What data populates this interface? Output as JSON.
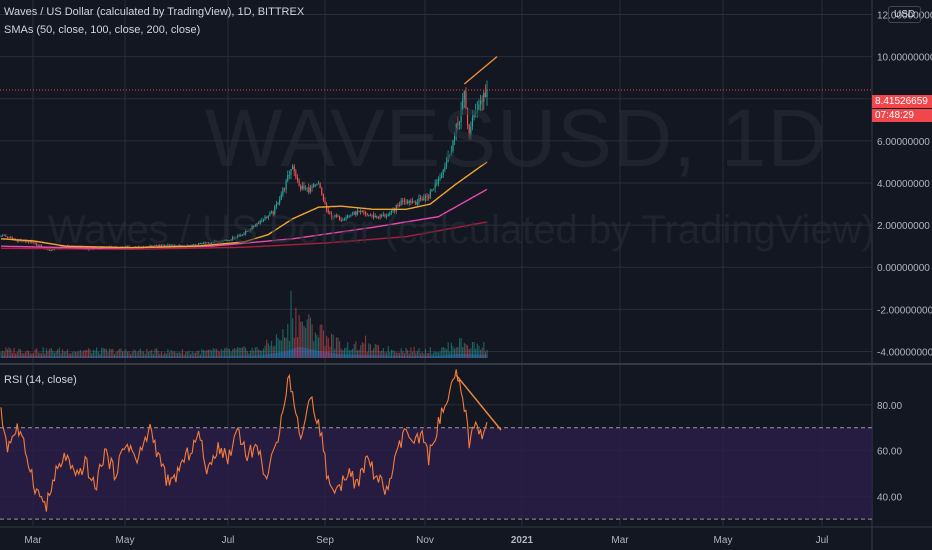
{
  "header": {
    "title": "Waves / US Dollar (calculated by TradingView), 1D, BITTREX",
    "indicators": "SMAs (50, close, 100, close, 200, close)",
    "rsi_label": "RSI (14, close)",
    "currency_button": "USD"
  },
  "watermark": {
    "symbol": "WAVESUSD, 1D",
    "description": "Waves / US Dollar (calculated by TradingView)"
  },
  "price_tag": {
    "value": "8.41526659",
    "countdown": "07:48:29"
  },
  "colors": {
    "background": "#131722",
    "grid": "#2a2e39",
    "up": "#26a69a",
    "down": "#ef5350",
    "sma50": "#f0a533",
    "sma100": "#e84aad",
    "sma200": "#ab1e3d",
    "rsi": "#f57c3a",
    "rsi_band": "#2a1d46",
    "trendline": "#f28b3a",
    "last_price": "#f0474c"
  },
  "chart_data": [
    {
      "type": "candlestick",
      "title": "Waves / US Dollar (calculated by TradingView), 1D, BITTREX",
      "ylim": [
        -4.5,
        12.5
      ],
      "y_ticks": [
        "12.00000000",
        "10.00000000",
        "8.00000000",
        "6.00000000",
        "4.00000000",
        "2.00000000",
        "0.00000000",
        "-2.00000000",
        "-4.00000000"
      ],
      "x_ticks": [
        "Mar",
        "May",
        "Jul",
        "Sep",
        "Nov",
        "2021",
        "Mar",
        "May",
        "Jul"
      ],
      "close_anchors": [
        [
          0,
          1.55
        ],
        [
          8,
          1.3
        ],
        [
          18,
          1.2
        ],
        [
          30,
          0.8
        ],
        [
          40,
          1.0
        ],
        [
          55,
          0.85
        ],
        [
          70,
          0.95
        ],
        [
          85,
          0.95
        ],
        [
          100,
          1.05
        ],
        [
          115,
          1.0
        ],
        [
          130,
          1.2
        ],
        [
          140,
          1.3
        ],
        [
          150,
          1.6
        ],
        [
          160,
          2.2
        ],
        [
          168,
          2.6
        ],
        [
          176,
          4.0
        ],
        [
          180,
          4.9
        ],
        [
          184,
          3.8
        ],
        [
          190,
          3.7
        ],
        [
          196,
          3.9
        ],
        [
          202,
          2.5
        ],
        [
          210,
          2.3
        ],
        [
          220,
          2.6
        ],
        [
          232,
          2.4
        ],
        [
          240,
          2.5
        ],
        [
          248,
          3.2
        ],
        [
          256,
          3.1
        ],
        [
          264,
          3.4
        ],
        [
          270,
          4.2
        ],
        [
          276,
          5.2
        ],
        [
          282,
          6.8
        ],
        [
          286,
          8.1
        ],
        [
          289,
          6.3
        ],
        [
          293,
          7.5
        ],
        [
          300,
          8.4
        ]
      ],
      "sma50_anchors": [
        [
          0,
          1.35
        ],
        [
          20,
          1.25
        ],
        [
          40,
          1.0
        ],
        [
          80,
          0.93
        ],
        [
          120,
          1.0
        ],
        [
          150,
          1.2
        ],
        [
          165,
          1.55
        ],
        [
          180,
          2.3
        ],
        [
          196,
          2.85
        ],
        [
          210,
          2.9
        ],
        [
          230,
          2.75
        ],
        [
          250,
          2.75
        ],
        [
          265,
          3.0
        ],
        [
          280,
          3.9
        ],
        [
          300,
          5.0
        ]
      ],
      "sma100_anchors": [
        [
          0,
          1.0
        ],
        [
          60,
          0.9
        ],
        [
          130,
          1.0
        ],
        [
          180,
          1.35
        ],
        [
          230,
          1.9
        ],
        [
          270,
          2.4
        ],
        [
          300,
          3.7
        ]
      ],
      "sma200_anchors": [
        [
          0,
          0.9
        ],
        [
          80,
          0.85
        ],
        [
          150,
          0.95
        ],
        [
          200,
          1.15
        ],
        [
          250,
          1.45
        ],
        [
          300,
          2.15
        ]
      ],
      "volume_anchors": [
        [
          0,
          1.4
        ],
        [
          60,
          1.3
        ],
        [
          120,
          1.1
        ],
        [
          160,
          1.6
        ],
        [
          176,
          4.2
        ],
        [
          184,
          7.0
        ],
        [
          196,
          4.5
        ],
        [
          210,
          2.3
        ],
        [
          240,
          1.5
        ],
        [
          270,
          1.3
        ],
        [
          282,
          2.6
        ],
        [
          300,
          2.0
        ]
      ],
      "volume_spikes": [
        [
          179,
          12.0
        ],
        [
          182,
          9.0
        ],
        [
          186,
          6.5
        ],
        [
          198,
          6.0
        ],
        [
          225,
          4.0
        ],
        [
          283,
          3.5
        ]
      ],
      "last_price": 8.41526659,
      "trendline": [
        [
          286,
          8.7
        ],
        [
          300,
          10.0
        ]
      ]
    },
    {
      "type": "line",
      "title": "RSI (14, close)",
      "ylim": [
        27,
        97
      ],
      "y_ticks": [
        "80.00",
        "60.00",
        "40.00"
      ],
      "bands": [
        30,
        70
      ],
      "anchors": [
        [
          0,
          76
        ],
        [
          4,
          62
        ],
        [
          10,
          70
        ],
        [
          16,
          58
        ],
        [
          22,
          42
        ],
        [
          28,
          36
        ],
        [
          34,
          50
        ],
        [
          40,
          58
        ],
        [
          46,
          47
        ],
        [
          52,
          55
        ],
        [
          58,
          43
        ],
        [
          64,
          60
        ],
        [
          70,
          50
        ],
        [
          78,
          64
        ],
        [
          84,
          55
        ],
        [
          92,
          70
        ],
        [
          98,
          56
        ],
        [
          104,
          44
        ],
        [
          110,
          52
        ],
        [
          116,
          59
        ],
        [
          122,
          67
        ],
        [
          128,
          50
        ],
        [
          134,
          63
        ],
        [
          140,
          56
        ],
        [
          146,
          70
        ],
        [
          152,
          58
        ],
        [
          158,
          62
        ],
        [
          164,
          48
        ],
        [
          170,
          62
        ],
        [
          174,
          80
        ],
        [
          178,
          93
        ],
        [
          182,
          75
        ],
        [
          186,
          66
        ],
        [
          190,
          84
        ],
        [
          194,
          77
        ],
        [
          198,
          66
        ],
        [
          202,
          46
        ],
        [
          208,
          42
        ],
        [
          214,
          52
        ],
        [
          220,
          44
        ],
        [
          226,
          57
        ],
        [
          232,
          48
        ],
        [
          238,
          42
        ],
        [
          244,
          57
        ],
        [
          250,
          70
        ],
        [
          254,
          62
        ],
        [
          260,
          66
        ],
        [
          264,
          57
        ],
        [
          270,
          72
        ],
        [
          276,
          82
        ],
        [
          281,
          93
        ],
        [
          286,
          80
        ],
        [
          289,
          64
        ],
        [
          293,
          71
        ],
        [
          297,
          68
        ],
        [
          300,
          72
        ]
      ],
      "trendline": [
        [
          281,
          93
        ],
        [
          300,
          72
        ]
      ]
    }
  ]
}
